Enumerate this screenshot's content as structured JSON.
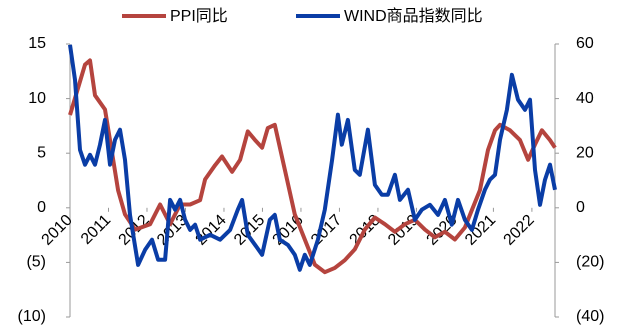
{
  "chart_data": {
    "type": "line",
    "xlim": [
      2010,
      2022.6
    ],
    "xticks": [
      2010,
      2011,
      2012,
      2013,
      2014,
      2015,
      2016,
      2017,
      2018,
      2019,
      2020,
      2021,
      2022
    ],
    "ylim": [
      -10,
      15
    ],
    "yticks": [
      15,
      10,
      5,
      0,
      {
        "value": -5,
        "label": "(5)"
      },
      {
        "value": -10,
        "label": "(10)"
      }
    ],
    "y2lim": [
      -40,
      60
    ],
    "y2ticks": [
      60,
      40,
      20,
      0,
      {
        "value": -20,
        "label": "(20)"
      },
      {
        "value": -40,
        "label": "(40)"
      }
    ],
    "negative_label_color": "#c00000",
    "legend": "top",
    "series": [
      {
        "name": "PPI同比",
        "color": "#b5443e",
        "x": [
          2010,
          2010.39,
          2010.52,
          2010.65,
          2010.91,
          2011.04,
          2011.25,
          2011.43,
          2011.69,
          2012.08,
          2012.34,
          2012.6,
          2012.86,
          2013.12,
          2013.38,
          2013.51,
          2013.77,
          2013.95,
          2014.21,
          2014.42,
          2014.62,
          2014.81,
          2014.99,
          2015.14,
          2015.32,
          2015.58,
          2015.84,
          2016.1,
          2016.36,
          2016.62,
          2016.88,
          2017.14,
          2017.4,
          2017.66,
          2017.92,
          2018.18,
          2018.44,
          2018.7,
          2018.96,
          2019.22,
          2019.48,
          2019.74,
          2020,
          2020.26,
          2020.44,
          2020.65,
          2020.86,
          2021.04,
          2021.17,
          2021.43,
          2021.69,
          2021.9,
          2022.08,
          2022.26,
          2022.47,
          2022.6
        ],
        "values": [
          8.5,
          13.1,
          13.5,
          10.3,
          9,
          6.2,
          1.6,
          -0.6,
          -2,
          -1.5,
          0.3,
          -1.5,
          0.3,
          0.3,
          0.7,
          2.6,
          3.9,
          4.7,
          3.3,
          4.4,
          7,
          6.2,
          5.5,
          7.3,
          7.6,
          3.5,
          -0.6,
          -2.9,
          -5.2,
          -5.9,
          -5.5,
          -4.8,
          -3.8,
          -2,
          -0.9,
          -1.5,
          -2.2,
          -1.5,
          -1.1,
          -2,
          -2.7,
          -2.2,
          -2.9,
          -1.8,
          -0.2,
          1.6,
          5.3,
          7.1,
          7.6,
          7.1,
          6.2,
          4.4,
          5.8,
          7.1,
          6.2,
          5.5
        ]
      },
      {
        "name": "WIND商品指数同比",
        "color": "#0a3da6",
        "axis": "y2",
        "x": [
          2010,
          2010.13,
          2010.26,
          2010.39,
          2010.52,
          2010.65,
          2010.78,
          2010.91,
          2011.04,
          2011.17,
          2011.3,
          2011.43,
          2011.56,
          2011.77,
          2011.95,
          2012.13,
          2012.29,
          2012.47,
          2012.6,
          2012.73,
          2012.86,
          2012.99,
          2013.12,
          2013.25,
          2013.38,
          2013.64,
          2013.9,
          2014.16,
          2014.36,
          2014.47,
          2014.62,
          2014.81,
          2014.99,
          2015.19,
          2015.32,
          2015.45,
          2015.66,
          2015.84,
          2015.97,
          2016.1,
          2016.23,
          2016.44,
          2016.62,
          2016.81,
          2016.96,
          2017.06,
          2017.22,
          2017.4,
          2017.53,
          2017.74,
          2017.92,
          2018.1,
          2018.26,
          2018.44,
          2018.57,
          2018.78,
          2018.96,
          2019.14,
          2019.35,
          2019.56,
          2019.74,
          2019.92,
          2020.08,
          2020.26,
          2020.44,
          2020.6,
          2020.78,
          2020.91,
          2021.04,
          2021.17,
          2021.35,
          2021.48,
          2021.64,
          2021.82,
          2021.95,
          2022.08,
          2022.21,
          2022.34,
          2022.47,
          2022.6
        ],
        "values": [
          59.7,
          46.9,
          21.2,
          15.8,
          19.4,
          15.8,
          23.1,
          32.2,
          15.8,
          24.9,
          28.6,
          17.6,
          -2.6,
          -20.9,
          -15.4,
          -11.7,
          -19,
          -19,
          2.9,
          -0.7,
          2.9,
          -4.4,
          -8.1,
          -6.2,
          -11.7,
          -9.9,
          -11.7,
          -8.1,
          -0.7,
          2.9,
          -9.9,
          -13.6,
          -17.2,
          -4.4,
          -2.6,
          -11.7,
          -13.6,
          -17.2,
          -22.7,
          -17.2,
          -20.9,
          -11.7,
          -0.7,
          17.6,
          34.1,
          23.1,
          32.2,
          13.9,
          12.1,
          28.6,
          8.4,
          4.8,
          4.8,
          12.1,
          2.9,
          6.6,
          -4.4,
          -0.7,
          1.1,
          -2.6,
          2.9,
          -6.2,
          2.9,
          -4.4,
          -8.1,
          -0.7,
          6.6,
          10.3,
          12.1,
          24.9,
          35.9,
          48.7,
          39.6,
          35.9,
          39.6,
          13.9,
          1.1,
          10.3,
          15.8,
          6.6
        ]
      }
    ]
  }
}
